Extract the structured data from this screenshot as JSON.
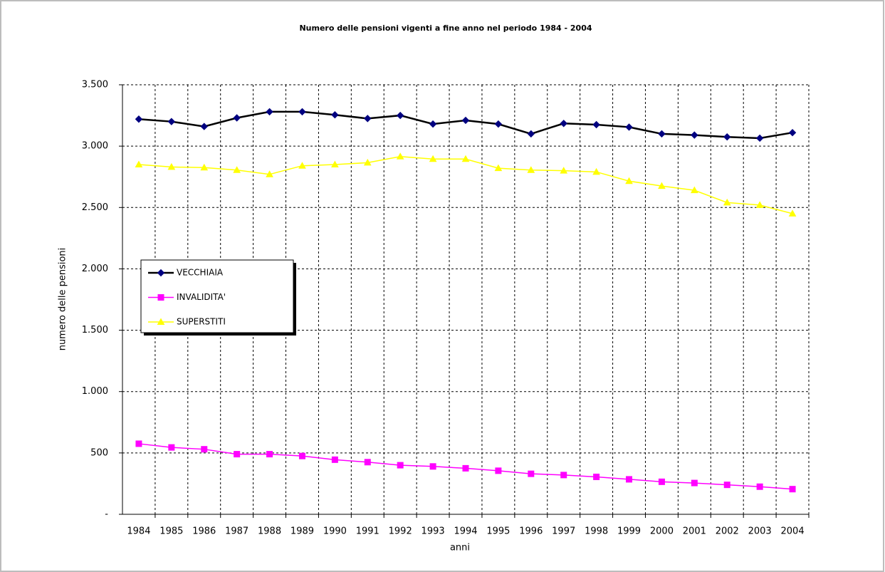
{
  "chart_data": {
    "type": "line",
    "title": "Numero delle pensioni vigenti a fine anno nel periodo 1984 - 2004",
    "x_label": "anni",
    "y_label": "numero delle pensioni",
    "categories": [
      "1984",
      "1985",
      "1986",
      "1987",
      "1988",
      "1989",
      "1990",
      "1991",
      "1992",
      "1993",
      "1994",
      "1995",
      "1996",
      "1997",
      "1998",
      "1999",
      "2000",
      "2001",
      "2002",
      "2003",
      "2004"
    ],
    "series": [
      {
        "name": "VECCHIAIA",
        "color": "#000080",
        "line_color": "#000000",
        "marker": "diamond",
        "values": [
          3220,
          3200,
          3160,
          3230,
          3280,
          3280,
          3255,
          3225,
          3250,
          3180,
          3210,
          3180,
          3100,
          3185,
          3175,
          3155,
          3100,
          3090,
          3075,
          3065,
          3110
        ]
      },
      {
        "name": "INVALIDITA'",
        "color": "#ff00ff",
        "line_color": "#ff00ff",
        "marker": "square",
        "values": [
          575,
          545,
          530,
          490,
          490,
          475,
          445,
          425,
          400,
          390,
          375,
          355,
          330,
          320,
          305,
          285,
          265,
          255,
          240,
          225,
          205
        ]
      },
      {
        "name": "SUPERSTITI",
        "color": "#ffff00",
        "line_color": "#ffff00",
        "marker": "triangle",
        "values": [
          2850,
          2830,
          2825,
          2805,
          2770,
          2840,
          2850,
          2865,
          2915,
          2895,
          2895,
          2820,
          2805,
          2800,
          2790,
          2715,
          2675,
          2640,
          2540,
          2520,
          2450
        ]
      }
    ],
    "ylim": [
      0,
      3500
    ],
    "yticks": [
      {
        "value": 0,
        "label": "-"
      },
      500,
      {
        "value": 1000,
        "label": "1.000"
      },
      {
        "value": 1500,
        "label": "1.500"
      },
      {
        "value": 2000,
        "label": "2.000"
      },
      {
        "value": 2500,
        "label": "2.500"
      },
      {
        "value": 3000,
        "label": "3.000"
      },
      {
        "value": 3500,
        "label": "3.500"
      }
    ],
    "grid": true,
    "legend": "center-left"
  }
}
